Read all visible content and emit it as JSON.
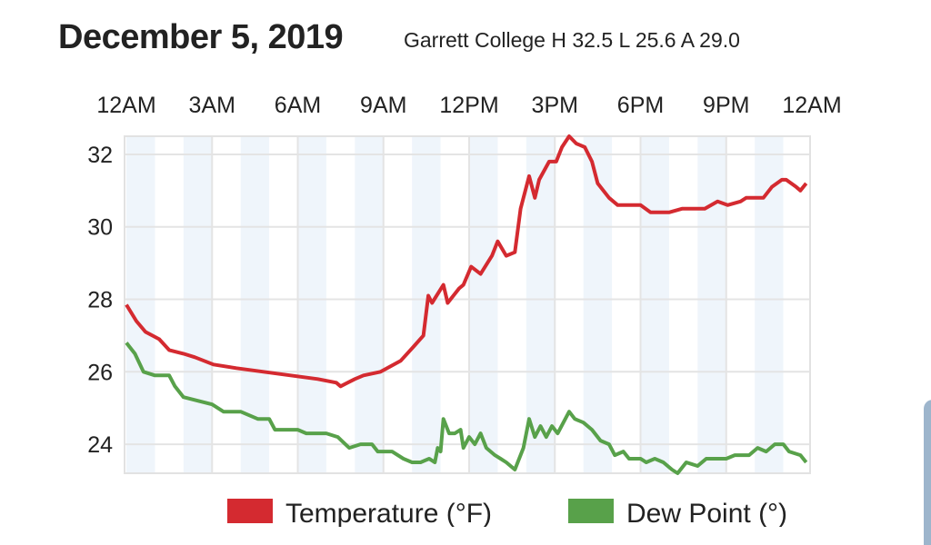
{
  "header": {
    "title": "December 5, 2019",
    "subtitle": "Garrett College H 32.5 L 25.6 A 29.0"
  },
  "chart_data": {
    "type": "line",
    "title": "December 5, 2019",
    "subtitle": "Garrett College H 32.5 L 25.6 A 29.0",
    "xlabel": "",
    "ylabel": "",
    "xlim": [
      0,
      24
    ],
    "ylim": [
      23.2,
      32.5
    ],
    "x_ticks": [
      0,
      3,
      6,
      9,
      12,
      15,
      18,
      21,
      24
    ],
    "x_tick_labels": [
      "12AM",
      "3AM",
      "6AM",
      "9AM",
      "12PM",
      "3PM",
      "6PM",
      "9PM",
      "12AM"
    ],
    "y_ticks": [
      24,
      26,
      28,
      30,
      32
    ],
    "y_tick_labels": [
      "24",
      "26",
      "28",
      "30",
      "32"
    ],
    "grid": true,
    "legend_position": "bottom",
    "series": [
      {
        "name": "Temperature (°F)",
        "color": "#d42a30",
        "x": [
          0,
          0.35,
          0.67,
          1.15,
          1.5,
          2,
          2.4,
          3.05,
          3.85,
          4.8,
          5.75,
          6.7,
          7.35,
          7.5,
          8,
          8.3,
          8.9,
          9.6,
          10.06,
          10.4,
          10.57,
          10.7,
          11.1,
          11.25,
          11.65,
          11.8,
          12.07,
          12.4,
          12.8,
          13.0,
          13.3,
          13.6,
          13.8,
          14.1,
          14.3,
          14.45,
          14.8,
          15.05,
          15.25,
          15.5,
          15.75,
          16.05,
          16.3,
          16.5,
          16.9,
          17.2,
          17.55,
          18.0,
          18.35,
          19.0,
          19.45,
          19.8,
          20.25,
          20.7,
          21.05,
          21.5,
          21.7,
          22.3,
          22.6,
          22.95,
          23.1,
          23.45,
          23.6,
          23.8
        ],
        "values": [
          27.85,
          27.4,
          27.1,
          26.9,
          26.6,
          26.5,
          26.4,
          26.2,
          26.1,
          26.0,
          25.9,
          25.8,
          25.7,
          25.6,
          25.8,
          25.9,
          26.0,
          26.3,
          26.7,
          27.0,
          28.1,
          27.9,
          28.4,
          27.9,
          28.3,
          28.4,
          28.9,
          28.7,
          29.2,
          29.6,
          29.2,
          29.3,
          30.5,
          31.4,
          30.8,
          31.3,
          31.8,
          31.8,
          32.2,
          32.5,
          32.3,
          32.2,
          31.8,
          31.2,
          30.8,
          30.6,
          30.6,
          30.6,
          30.4,
          30.4,
          30.5,
          30.5,
          30.5,
          30.7,
          30.6,
          30.7,
          30.8,
          30.8,
          31.1,
          31.3,
          31.3,
          31.1,
          31.0,
          31.2
        ]
      },
      {
        "name": "Dew Point (°)",
        "color": "#58a14a",
        "x": [
          0,
          0.3,
          0.6,
          1.0,
          1.5,
          1.7,
          2.0,
          2.5,
          3.0,
          3.4,
          4.0,
          4.6,
          5.0,
          5.2,
          6.0,
          6.3,
          7.0,
          7.4,
          7.8,
          8.2,
          8.6,
          8.8,
          9.3,
          9.7,
          10.0,
          10.3,
          10.6,
          10.8,
          10.9,
          11.0,
          11.1,
          11.3,
          11.5,
          11.7,
          11.8,
          12.0,
          12.2,
          12.4,
          12.6,
          12.9,
          13.1,
          13.3,
          13.6,
          13.9,
          14.1,
          14.3,
          14.5,
          14.7,
          14.9,
          15.1,
          15.5,
          15.7,
          16.0,
          16.3,
          16.6,
          16.9,
          17.1,
          17.4,
          17.6,
          18.0,
          18.2,
          18.5,
          18.8,
          19.1,
          19.3,
          19.6,
          20.0,
          20.3,
          21.0,
          21.3,
          21.8,
          22.1,
          22.4,
          22.7,
          23.0,
          23.2,
          23.6,
          23.8
        ],
        "values": [
          26.8,
          26.5,
          26.0,
          25.9,
          25.9,
          25.6,
          25.3,
          25.2,
          25.1,
          24.9,
          24.9,
          24.7,
          24.7,
          24.4,
          24.4,
          24.3,
          24.3,
          24.2,
          23.9,
          24.0,
          24.0,
          23.8,
          23.8,
          23.6,
          23.5,
          23.5,
          23.6,
          23.5,
          23.9,
          23.8,
          24.7,
          24.3,
          24.3,
          24.4,
          23.9,
          24.2,
          24.0,
          24.3,
          23.9,
          23.7,
          23.6,
          23.5,
          23.3,
          23.9,
          24.7,
          24.2,
          24.5,
          24.2,
          24.5,
          24.3,
          24.9,
          24.7,
          24.6,
          24.4,
          24.1,
          24.0,
          23.7,
          23.8,
          23.6,
          23.6,
          23.5,
          23.6,
          23.5,
          23.3,
          23.2,
          23.5,
          23.4,
          23.6,
          23.6,
          23.7,
          23.7,
          23.9,
          23.8,
          24.0,
          24.0,
          23.8,
          23.7,
          23.5
        ]
      }
    ]
  }
}
